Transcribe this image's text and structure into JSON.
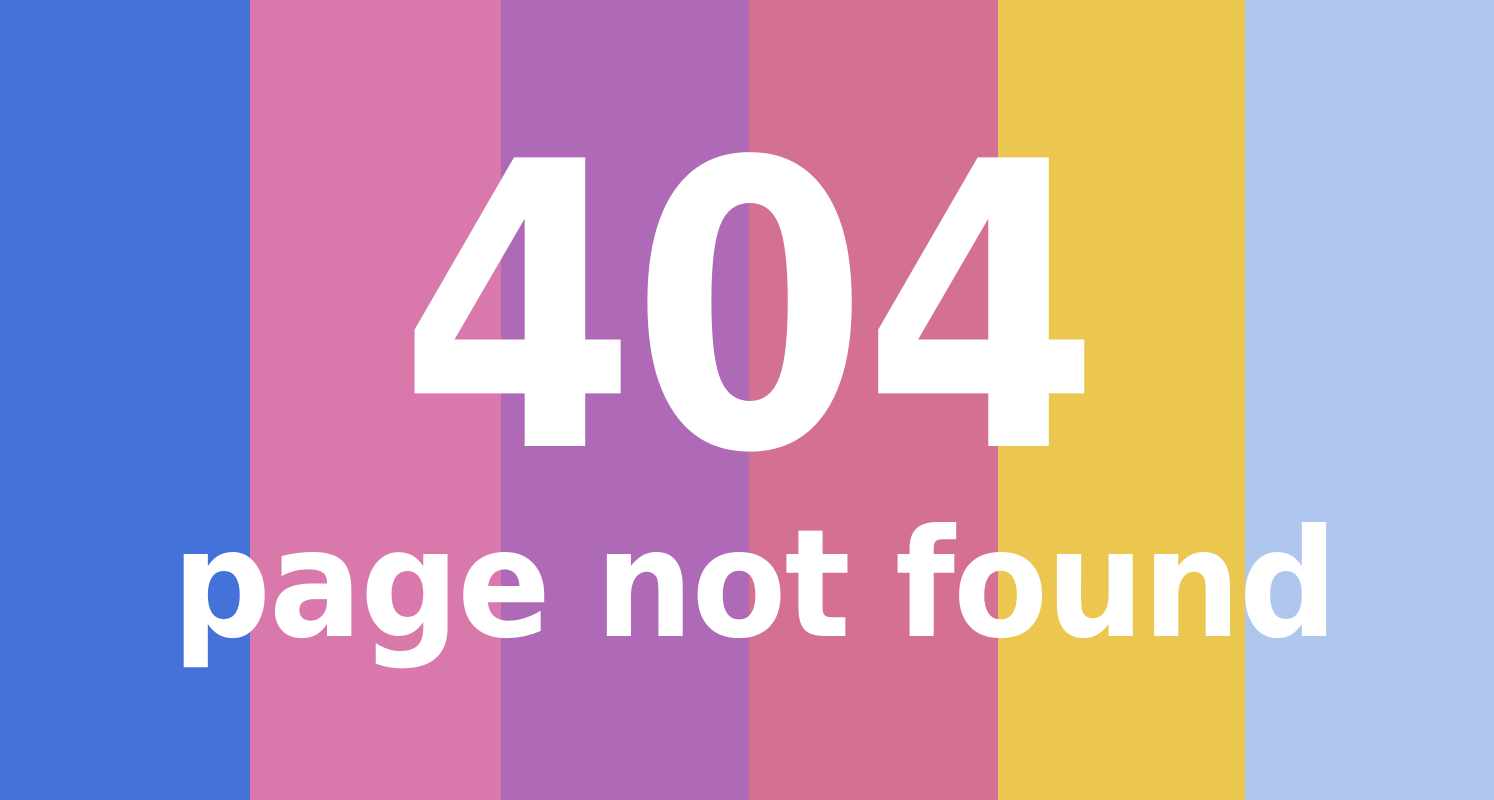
{
  "error": {
    "code": "404",
    "message": "page not found"
  },
  "stripes": [
    {
      "color": "#4472d9"
    },
    {
      "color": "#d978ab"
    },
    {
      "color": "#ae6ab7"
    },
    {
      "color": "#d47093"
    },
    {
      "color": "#ebc750"
    },
    {
      "color": "#afc7ef"
    }
  ],
  "text_color": "#ffffff"
}
